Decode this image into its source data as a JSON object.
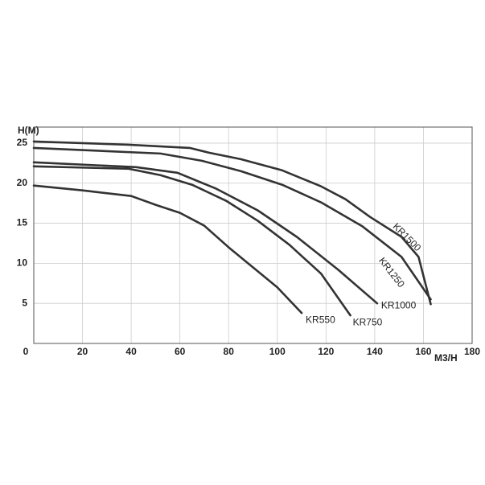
{
  "chart_data": {
    "type": "line",
    "y_label": "H(M)",
    "x_label": "M3/H",
    "xlim": [
      0,
      180
    ],
    "ylim": [
      0,
      27
    ],
    "xticks": [
      0,
      20,
      40,
      60,
      80,
      100,
      120,
      140,
      160,
      180
    ],
    "yticks": [
      5,
      10,
      15,
      20,
      25
    ],
    "grid": true,
    "series": [
      {
        "name": "KR550",
        "color": "#333333",
        "x": [
          0,
          20,
          40,
          50,
          60,
          70,
          80,
          90,
          100,
          110
        ],
        "values": [
          19.7,
          19.1,
          18.4,
          17.3,
          16.3,
          14.7,
          12,
          9.5,
          7,
          3.8
        ]
      },
      {
        "name": "KR750",
        "color": "#333333",
        "x": [
          0,
          39,
          52,
          65,
          79,
          92,
          105,
          118,
          130
        ],
        "values": [
          22.1,
          21.8,
          21,
          19.8,
          17.8,
          15.3,
          12.3,
          8.7,
          3.5
        ]
      },
      {
        "name": "KR1000",
        "color": "#333333",
        "x": [
          0,
          42,
          59,
          75,
          92,
          108,
          125,
          141
        ],
        "values": [
          22.6,
          22,
          21.3,
          19.3,
          16.6,
          13.3,
          9.2,
          5
        ]
      },
      {
        "name": "KR1250",
        "color": "#333333",
        "x": [
          0,
          52,
          69,
          85,
          102,
          118,
          135,
          151,
          163
        ],
        "values": [
          24.4,
          23.7,
          22.8,
          21.5,
          19.8,
          17.6,
          14.6,
          10.8,
          5.5
        ]
      },
      {
        "name": "KR1500",
        "color": "#333333",
        "x": [
          0,
          39,
          64,
          72,
          85,
          102,
          118,
          128,
          138,
          151,
          158,
          163
        ],
        "values": [
          25.2,
          24.8,
          24.4,
          23.8,
          23,
          21.6,
          19.6,
          18,
          15.8,
          13.3,
          10.8,
          4.9
        ]
      }
    ]
  }
}
